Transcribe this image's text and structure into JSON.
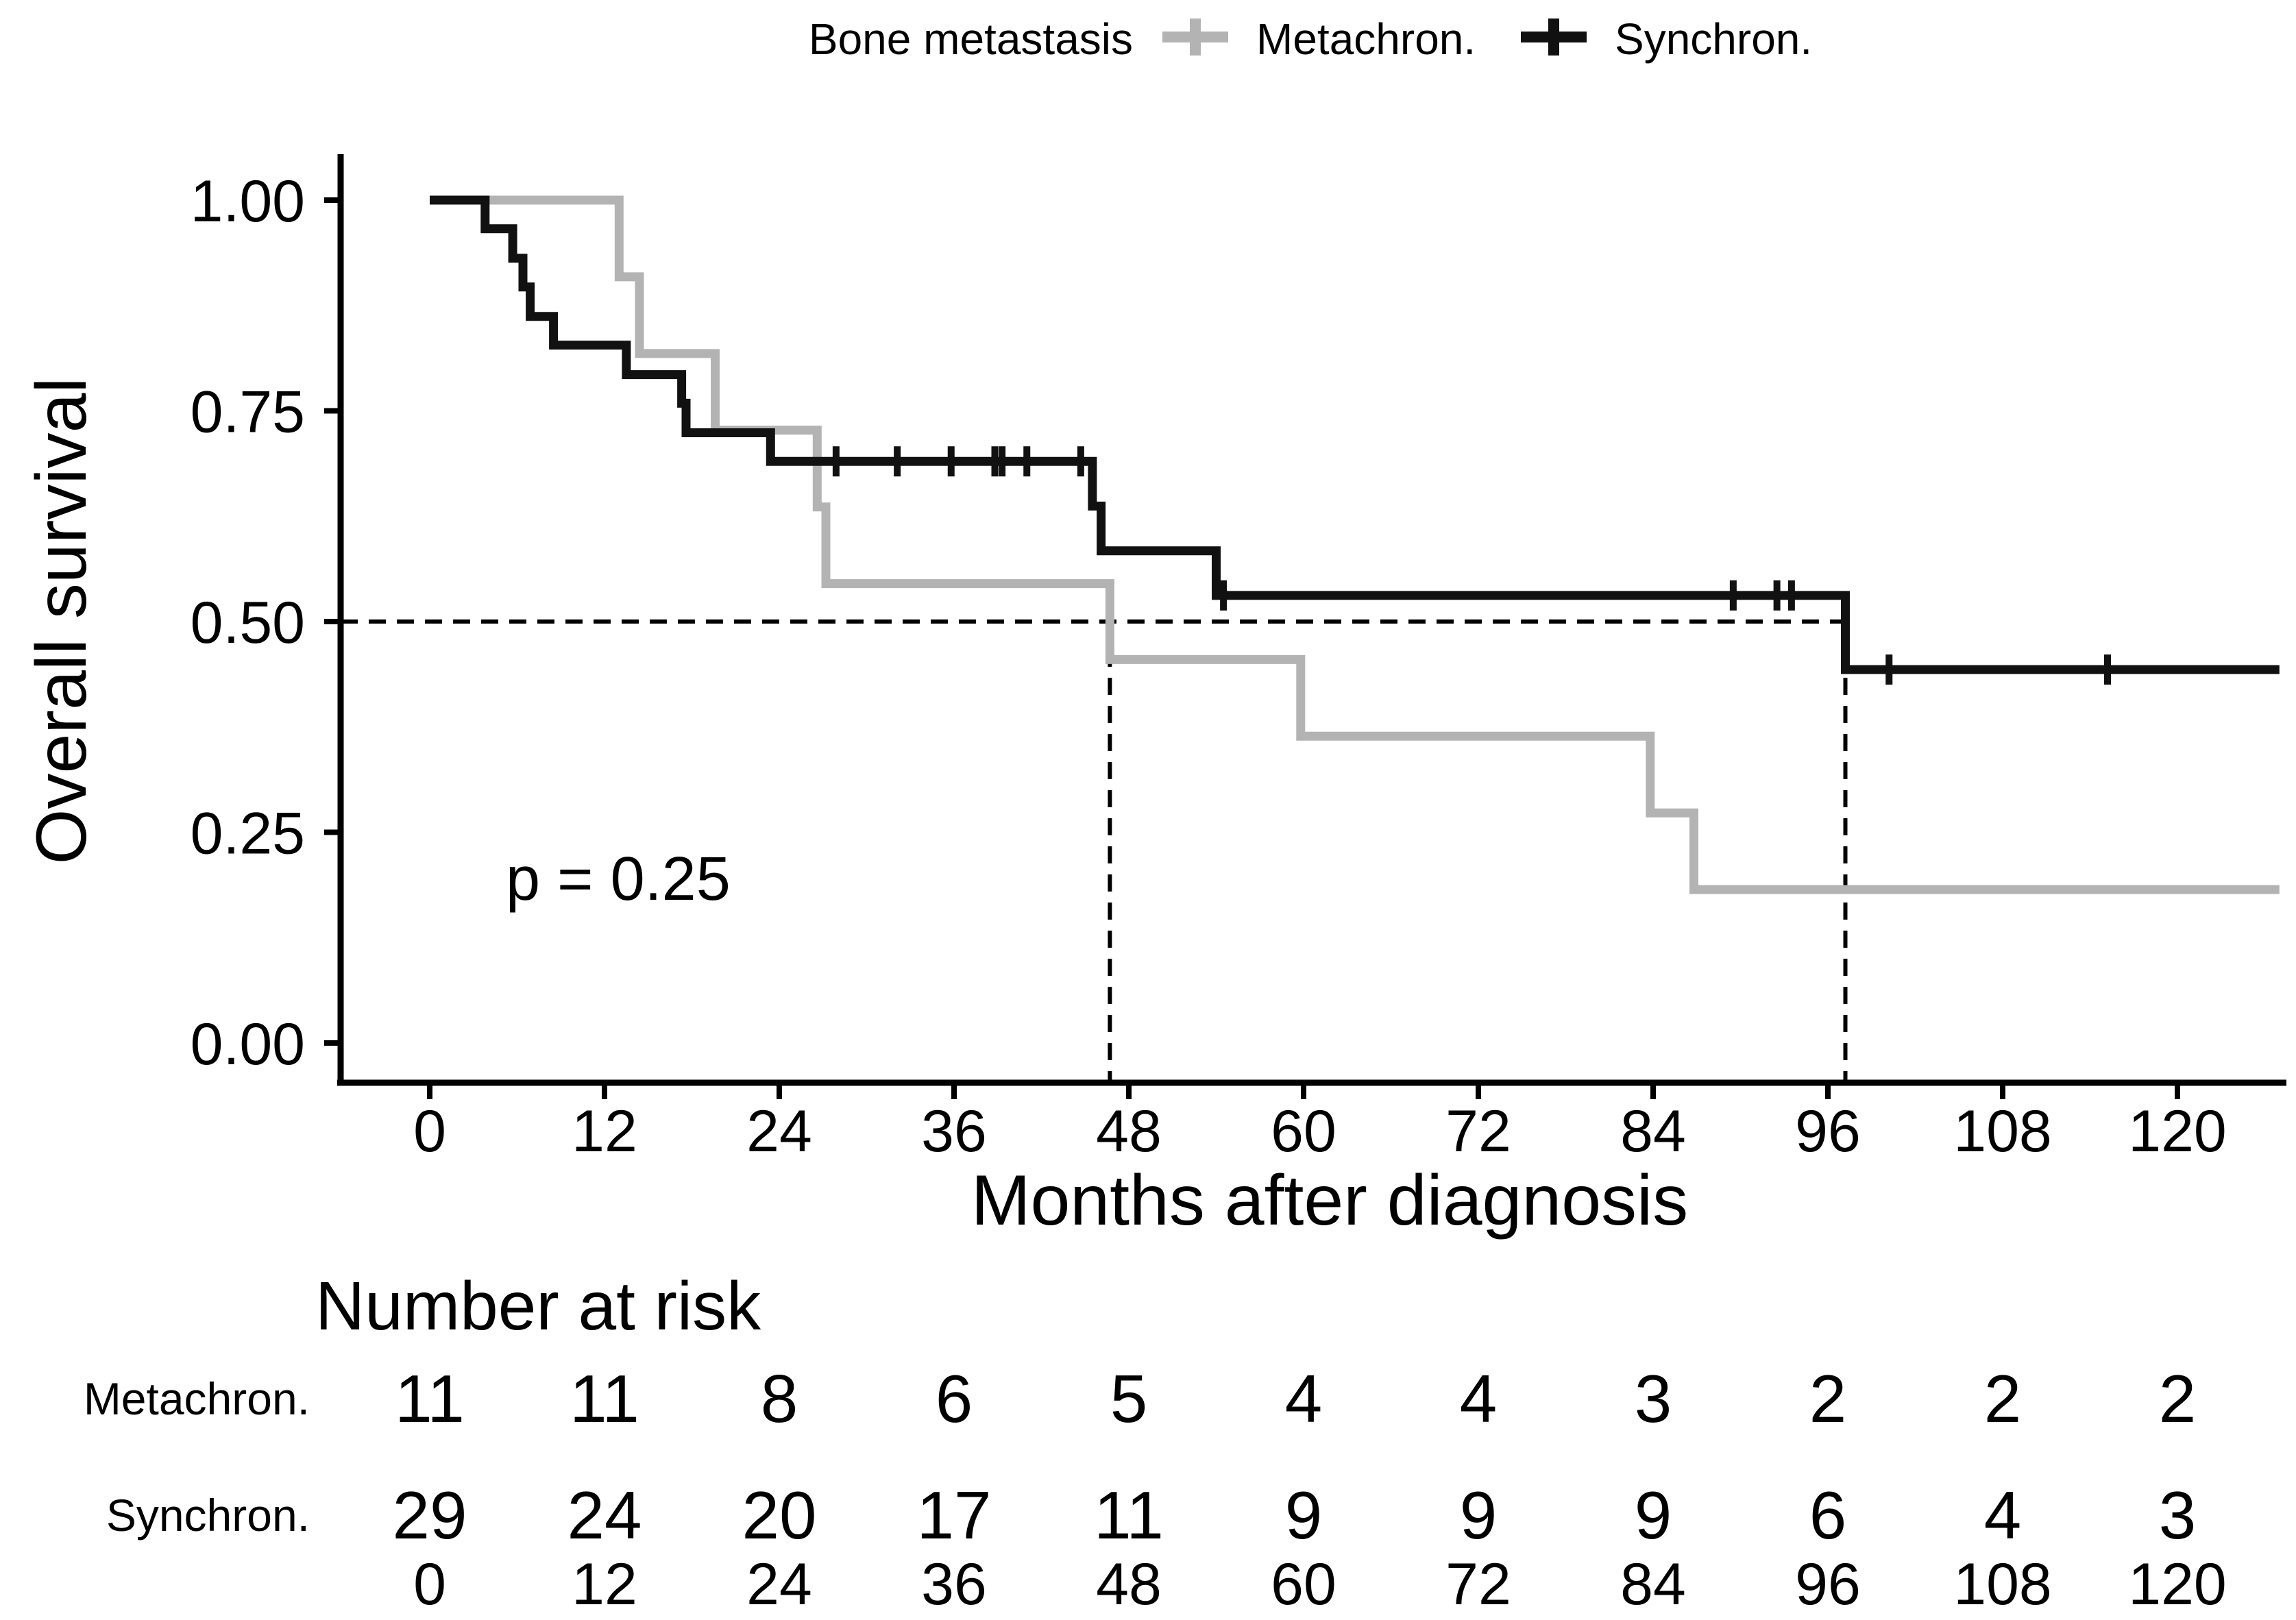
{
  "legend": {
    "title": "Bone metastasis",
    "items": [
      {
        "label": "Metachron.",
        "color": "#b3b3b3"
      },
      {
        "label": "Synchron.",
        "color": "#111111"
      }
    ]
  },
  "axes": {
    "y_label": "Overall survival",
    "x_label": "Months after diagnosis"
  },
  "annotation": {
    "p_value": "p = 0.25"
  },
  "chart_data": {
    "type": "line",
    "subtype": "kaplan-meier-step",
    "title": "Bone metastasis",
    "xlabel": "Months after diagnosis",
    "ylabel": "Overall survival",
    "xlim": [
      0,
      130
    ],
    "ylim": [
      0,
      1
    ],
    "x_ticks": [
      0,
      12,
      24,
      36,
      48,
      60,
      72,
      84,
      96,
      108,
      120
    ],
    "y_ticks": [
      {
        "label": "1.00",
        "value": 1.0
      },
      {
        "label": "0.75",
        "value": 0.75
      },
      {
        "label": "0.50",
        "value": 0.5
      },
      {
        "label": "0.25",
        "value": 0.25
      },
      {
        "label": "0.00",
        "value": 0.0
      }
    ],
    "grid": false,
    "legend_position": "top",
    "p_value": "p = 0.25",
    "median_reference_level": 0.5,
    "curve_end_month": 127,
    "series": [
      {
        "name": "Metachron.",
        "color": "#b3b3b3",
        "n_start": 11,
        "median_months": 46.7,
        "events": [
          [
            13,
            0.909
          ],
          [
            14.4,
            0.818
          ],
          [
            19.6,
            0.727
          ],
          [
            26.6,
            0.636
          ],
          [
            27.2,
            0.545
          ],
          [
            46.7,
            0.455
          ],
          [
            59.8,
            0.364
          ],
          [
            83.8,
            0.273
          ],
          [
            86.8,
            0.182
          ]
        ],
        "censored": []
      },
      {
        "name": "Synchron.",
        "color": "#111111",
        "n_start": 29,
        "median_months": 97.2,
        "events": [
          [
            3.8,
            0.966
          ],
          [
            5.7,
            0.931
          ],
          [
            6.4,
            0.897
          ],
          [
            6.9,
            0.862
          ],
          [
            8.5,
            0.828
          ],
          [
            13.5,
            0.793
          ],
          [
            17.3,
            0.759
          ],
          [
            17.6,
            0.724
          ],
          [
            23.4,
            0.69
          ],
          [
            45.5,
            0.637
          ],
          [
            46.1,
            0.584
          ],
          [
            54,
            0.531
          ],
          [
            97.2,
            0.443
          ]
        ],
        "censored": [
          [
            27.9,
            0.69
          ],
          [
            32.1,
            0.69
          ],
          [
            35.8,
            0.69
          ],
          [
            38.8,
            0.69
          ],
          [
            39.3,
            0.69
          ],
          [
            41,
            0.69
          ],
          [
            44.7,
            0.69
          ],
          [
            54.5,
            0.531
          ],
          [
            89.5,
            0.531
          ],
          [
            92.5,
            0.531
          ],
          [
            93.5,
            0.531
          ],
          [
            100.2,
            0.443
          ],
          [
            115.2,
            0.443
          ]
        ]
      }
    ]
  },
  "risk_table": {
    "title": "Number at risk",
    "times": [
      0,
      12,
      24,
      36,
      48,
      60,
      72,
      84,
      96,
      108,
      120
    ],
    "rows": [
      {
        "label": "Metachron.",
        "counts": [
          11,
          11,
          8,
          6,
          5,
          4,
          4,
          3,
          2,
          2,
          2
        ]
      },
      {
        "label": "Synchron.",
        "counts": [
          29,
          24,
          20,
          17,
          11,
          9,
          9,
          9,
          6,
          4,
          3
        ]
      }
    ]
  }
}
